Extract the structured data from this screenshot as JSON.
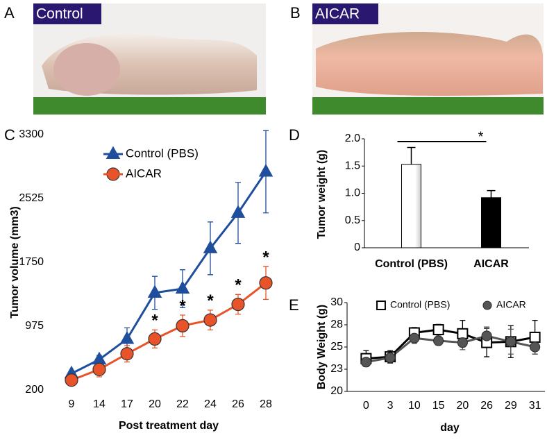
{
  "photos": [
    {
      "panel": "A",
      "label": "Control"
    },
    {
      "panel": "B",
      "label": "AICAR"
    }
  ],
  "chart_data": [
    {
      "type": "line",
      "panel": "C",
      "xlabel": "Post treatment day",
      "ylabel": "Tumor volume (mm3)",
      "categories": [
        9,
        14,
        17,
        20,
        22,
        24,
        26,
        28
      ],
      "ylim": [
        200,
        3300
      ],
      "yticks": [
        200,
        975,
        1750,
        2525,
        3300
      ],
      "series": [
        {
          "name": "Control (PBS)",
          "color": "#1f4e9c",
          "marker": "triangle",
          "marker_fill": "#1f4e9c",
          "values": [
            400,
            570,
            820,
            1380,
            1430,
            1920,
            2350,
            2850
          ],
          "errors": [
            30,
            50,
            135,
            200,
            230,
            320,
            370,
            500
          ]
        },
        {
          "name": "AICAR",
          "color": "#e8532a",
          "marker": "circle",
          "marker_fill": "#e8532a",
          "values": [
            320,
            450,
            640,
            820,
            980,
            1050,
            1240,
            1500
          ],
          "errors": [
            50,
            90,
            100,
            110,
            130,
            120,
            120,
            200
          ],
          "significance": [
            null,
            null,
            null,
            "*",
            "*",
            "*",
            "*",
            "*"
          ]
        }
      ]
    },
    {
      "type": "bar",
      "panel": "D",
      "ylabel": "Tumor weight (g)",
      "categories": [
        "Control (PBS)",
        "AICAR"
      ],
      "values": [
        1.53,
        0.92
      ],
      "errors": [
        0.31,
        0.13
      ],
      "colors": [
        "#ffffff",
        "#000000"
      ],
      "significance": "*",
      "ylim": [
        0,
        2
      ],
      "yticks": [
        0,
        0.5,
        {
          "value": 1,
          "label": "1.0"
        },
        1.5,
        {
          "value": 2,
          "label": "2.0"
        }
      ]
    },
    {
      "type": "line",
      "panel": "E",
      "xlabel": "day",
      "ylabel": "Body Weight (g)",
      "categories": [
        0,
        3,
        10,
        15,
        20,
        26,
        29,
        31
      ],
      "ylim": [
        20,
        30
      ],
      "yticks": [
        20,
        {
          "value": 22.5,
          "label": "23"
        },
        25,
        {
          "value": 27.5,
          "label": "28"
        },
        30
      ],
      "series": [
        {
          "name": "Control (PBS)",
          "color": "#000000",
          "marker": "square",
          "marker_fill": "#ffffff",
          "values": [
            23.7,
            23.9,
            26.6,
            26.95,
            26.5,
            25.5,
            25.6,
            26.1
          ],
          "errors": [
            0.9,
            0.7,
            0.6,
            0.6,
            1.5,
            1.6,
            1.8,
            1.9
          ]
        },
        {
          "name": "AICAR",
          "color": "#555555",
          "marker": "circle",
          "marker_fill": "#555555",
          "values": [
            23.3,
            23.8,
            26.0,
            25.7,
            25.5,
            26.25,
            25.6,
            25.0
          ],
          "errors": [
            0.5,
            0.5,
            0.6,
            0.5,
            0.8,
            1.0,
            1.4,
            0.8
          ]
        }
      ]
    }
  ]
}
